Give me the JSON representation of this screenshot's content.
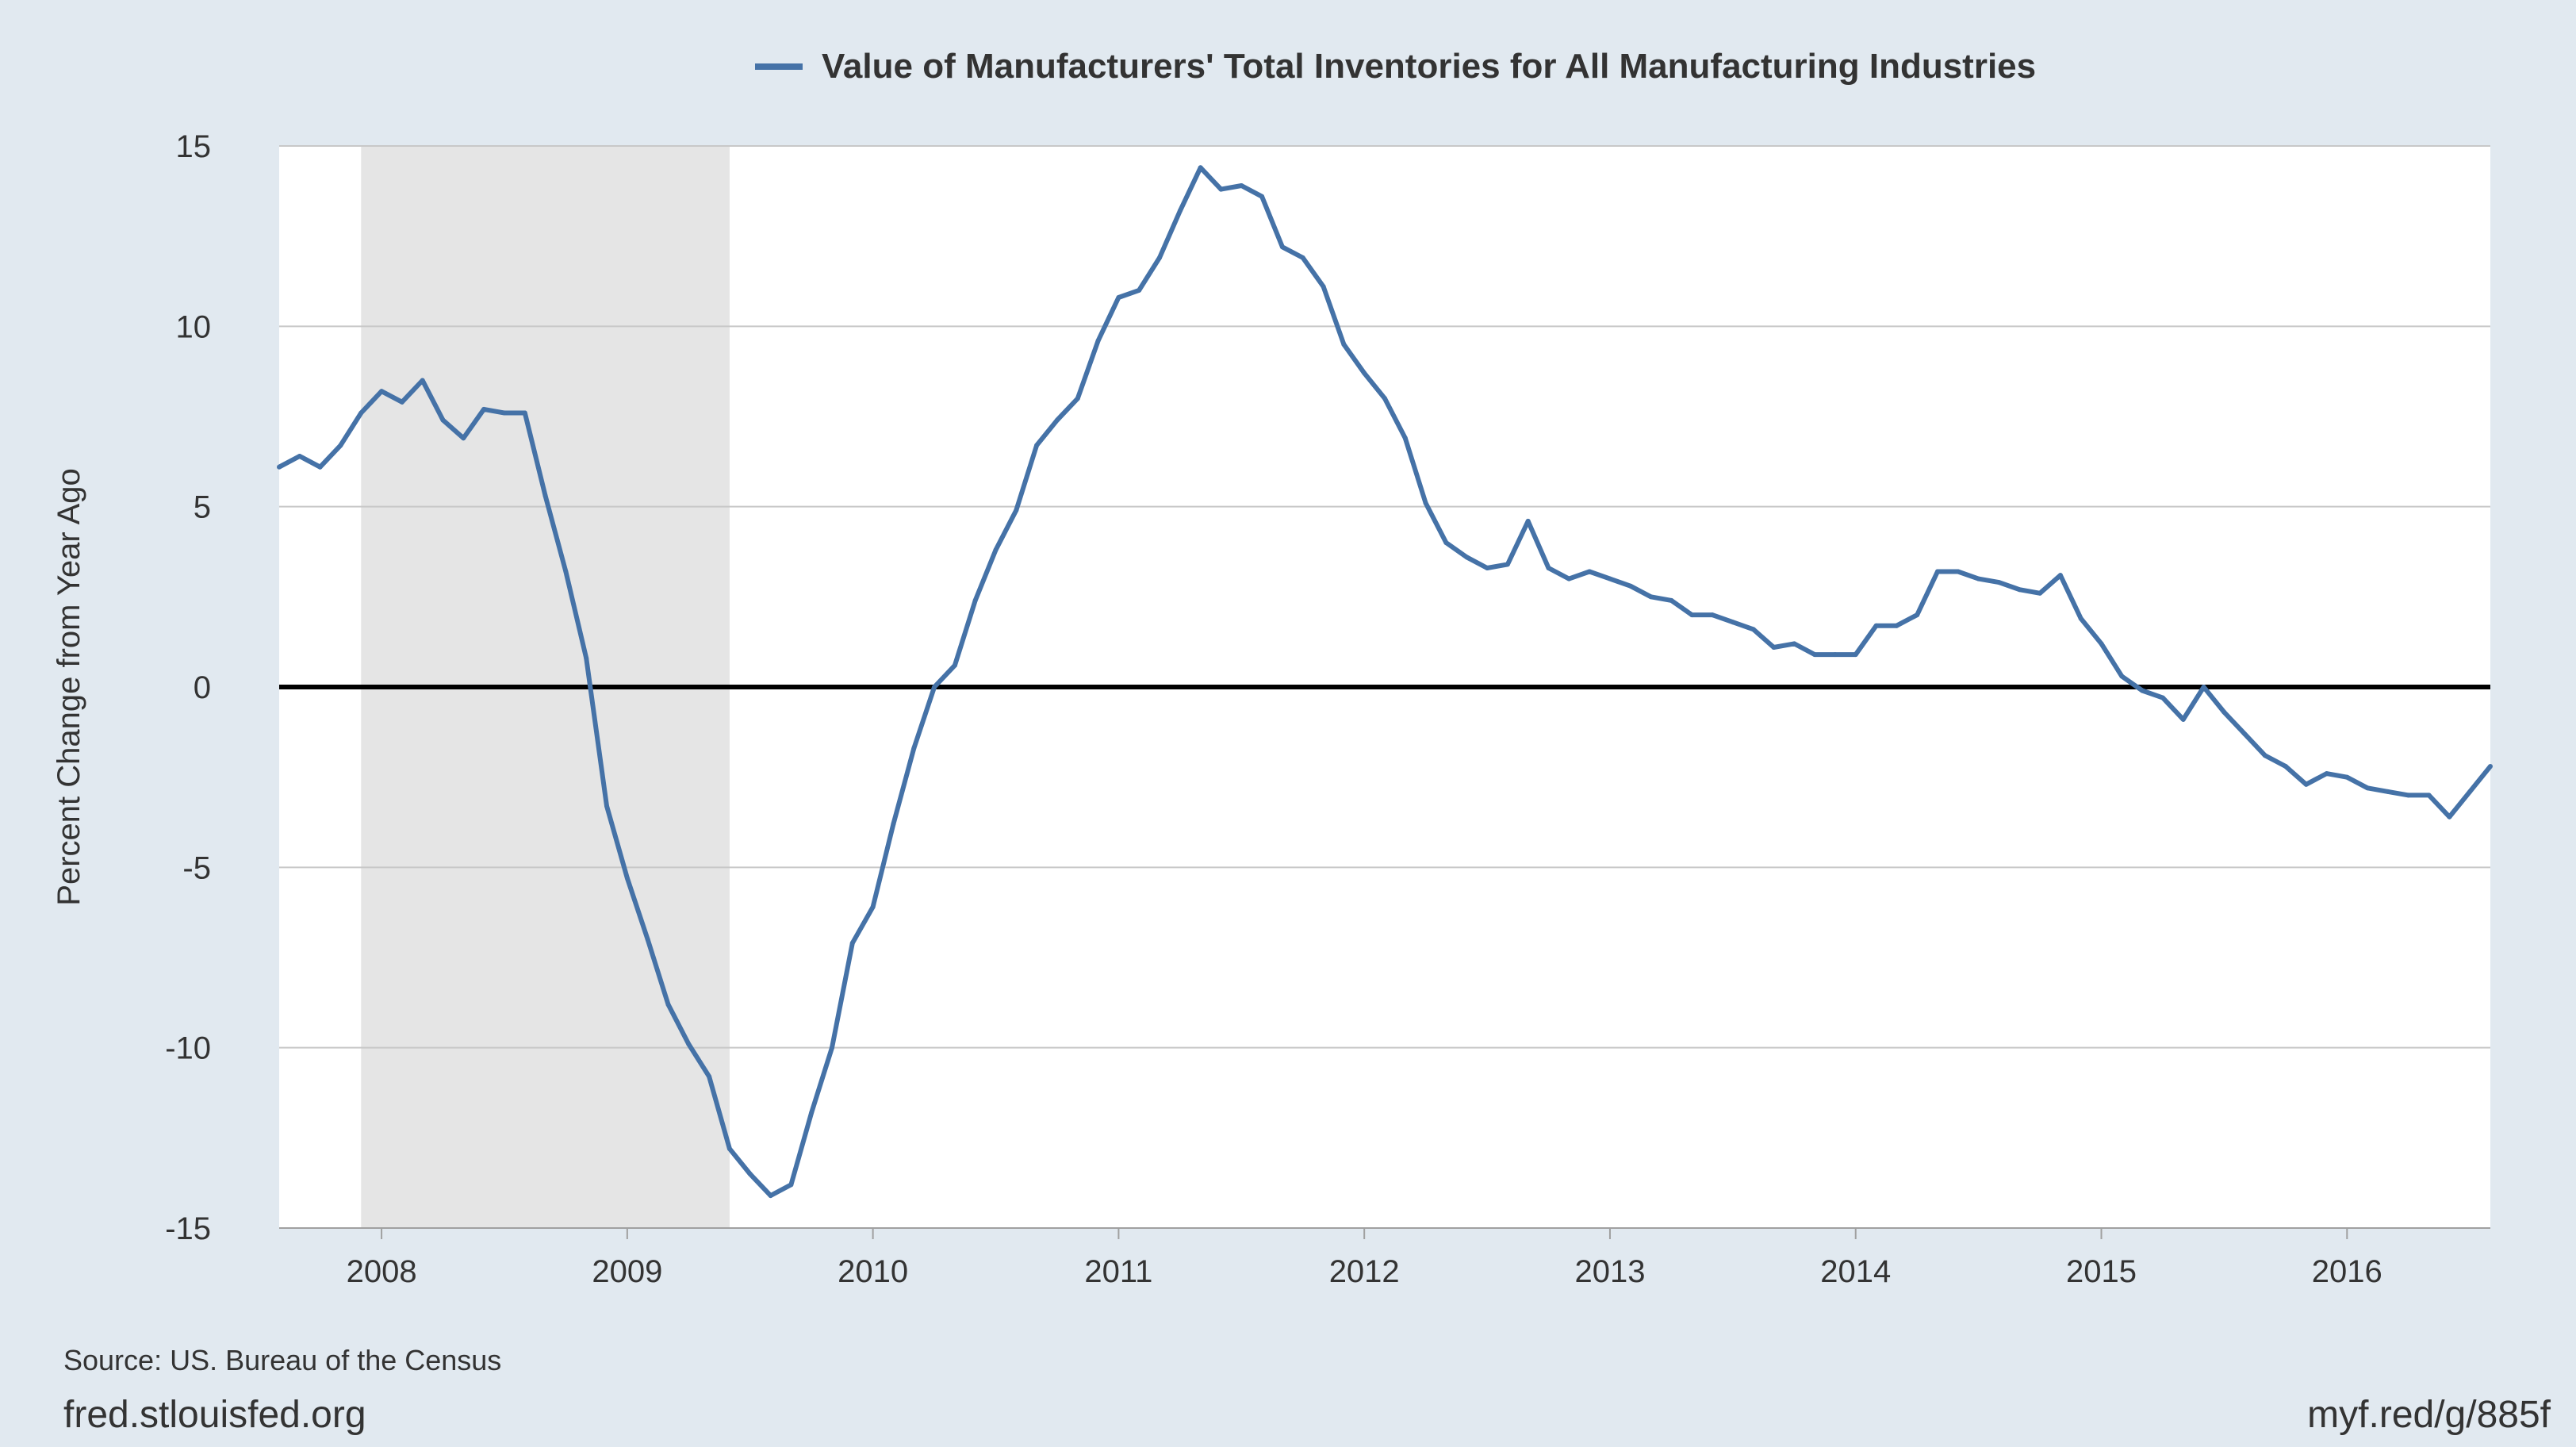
{
  "legend": {
    "label": "Value of Manufacturers' Total Inventories for All Manufacturing Industries"
  },
  "footer": {
    "source": "Source: US. Bureau of the Census",
    "site": "fred.stlouisfed.org",
    "short_link": "myf.red/g/885f"
  },
  "colors": {
    "background": "#e1e9f0",
    "plot_background": "#ffffff",
    "series": "#4572a7",
    "recession": "#e5e5e5",
    "gridline": "#c8c8c8",
    "zero_line": "#000000"
  },
  "chart_data": {
    "type": "line",
    "ylabel": "Percent Change from Year Ago",
    "xlabel": "",
    "ylim": [
      -15,
      15
    ],
    "xlim": [
      "2007-08",
      "2016-08"
    ],
    "yticks": [
      "15",
      "10",
      "5",
      "0",
      "-5",
      "-10",
      "-15"
    ],
    "xticks": [
      "2008",
      "2009",
      "2010",
      "2011",
      "2012",
      "2013",
      "2014",
      "2015",
      "2016"
    ],
    "grid": true,
    "legend_position": "top-center",
    "zero_line": true,
    "recession_shading": {
      "start": "2007-12",
      "end": "2009-06"
    },
    "series": [
      {
        "name": "Value of Manufacturers' Total Inventories for All Manufacturing Industries",
        "x": [
          "2007-08",
          "2007-09",
          "2007-10",
          "2007-11",
          "2007-12",
          "2008-01",
          "2008-02",
          "2008-03",
          "2008-04",
          "2008-05",
          "2008-06",
          "2008-07",
          "2008-08",
          "2008-09",
          "2008-10",
          "2008-11",
          "2008-12",
          "2009-01",
          "2009-02",
          "2009-03",
          "2009-04",
          "2009-05",
          "2009-06",
          "2009-07",
          "2009-08",
          "2009-09",
          "2009-10",
          "2009-11",
          "2009-12",
          "2010-01",
          "2010-02",
          "2010-03",
          "2010-04",
          "2010-05",
          "2010-06",
          "2010-07",
          "2010-08",
          "2010-09",
          "2010-10",
          "2010-11",
          "2010-12",
          "2011-01",
          "2011-02",
          "2011-03",
          "2011-04",
          "2011-05",
          "2011-06",
          "2011-07",
          "2011-08",
          "2011-09",
          "2011-10",
          "2011-11",
          "2011-12",
          "2012-01",
          "2012-02",
          "2012-03",
          "2012-04",
          "2012-05",
          "2012-06",
          "2012-07",
          "2012-08",
          "2012-09",
          "2012-10",
          "2012-11",
          "2012-12",
          "2013-01",
          "2013-02",
          "2013-03",
          "2013-04",
          "2013-05",
          "2013-06",
          "2013-07",
          "2013-08",
          "2013-09",
          "2013-10",
          "2013-11",
          "2013-12",
          "2014-01",
          "2014-02",
          "2014-03",
          "2014-04",
          "2014-05",
          "2014-06",
          "2014-07",
          "2014-08",
          "2014-09",
          "2014-10",
          "2014-11",
          "2014-12",
          "2015-01",
          "2015-02",
          "2015-03",
          "2015-04",
          "2015-05",
          "2015-06",
          "2015-07",
          "2015-08",
          "2015-09",
          "2015-10",
          "2015-11",
          "2015-12",
          "2016-01",
          "2016-02",
          "2016-03",
          "2016-04",
          "2016-05",
          "2016-06",
          "2016-07",
          "2016-08"
        ],
        "y": [
          6.1,
          6.4,
          6.1,
          6.7,
          7.6,
          8.2,
          7.9,
          8.5,
          7.4,
          6.9,
          7.7,
          7.6,
          7.6,
          5.3,
          3.2,
          0.8,
          -3.3,
          -5.3,
          -7.0,
          -8.8,
          -9.9,
          -10.8,
          -12.8,
          -13.5,
          -14.1,
          -13.8,
          -11.8,
          -10.0,
          -7.1,
          -6.1,
          -3.8,
          -1.7,
          0.0,
          0.6,
          2.4,
          3.8,
          4.9,
          6.7,
          7.4,
          8.0,
          9.6,
          10.8,
          11.0,
          11.9,
          13.2,
          14.4,
          13.8,
          13.9,
          13.6,
          12.2,
          11.9,
          11.1,
          9.5,
          8.7,
          8.0,
          6.9,
          5.1,
          4.0,
          3.6,
          3.3,
          3.4,
          4.6,
          3.3,
          3.0,
          3.2,
          3.0,
          2.8,
          2.5,
          2.4,
          2.0,
          2.0,
          1.8,
          1.6,
          1.1,
          1.2,
          0.9,
          0.9,
          0.9,
          1.7,
          1.7,
          2.0,
          3.2,
          3.2,
          3.0,
          2.9,
          2.7,
          2.6,
          3.1,
          1.9,
          1.2,
          0.3,
          -0.1,
          -0.3,
          -0.9,
          0.0,
          -0.7,
          -1.3,
          -1.9,
          -2.2,
          -2.7,
          -2.4,
          -2.5,
          -2.8,
          -2.9,
          -3.0,
          -3.0,
          -3.6,
          -2.9,
          -2.2
        ]
      }
    ]
  }
}
